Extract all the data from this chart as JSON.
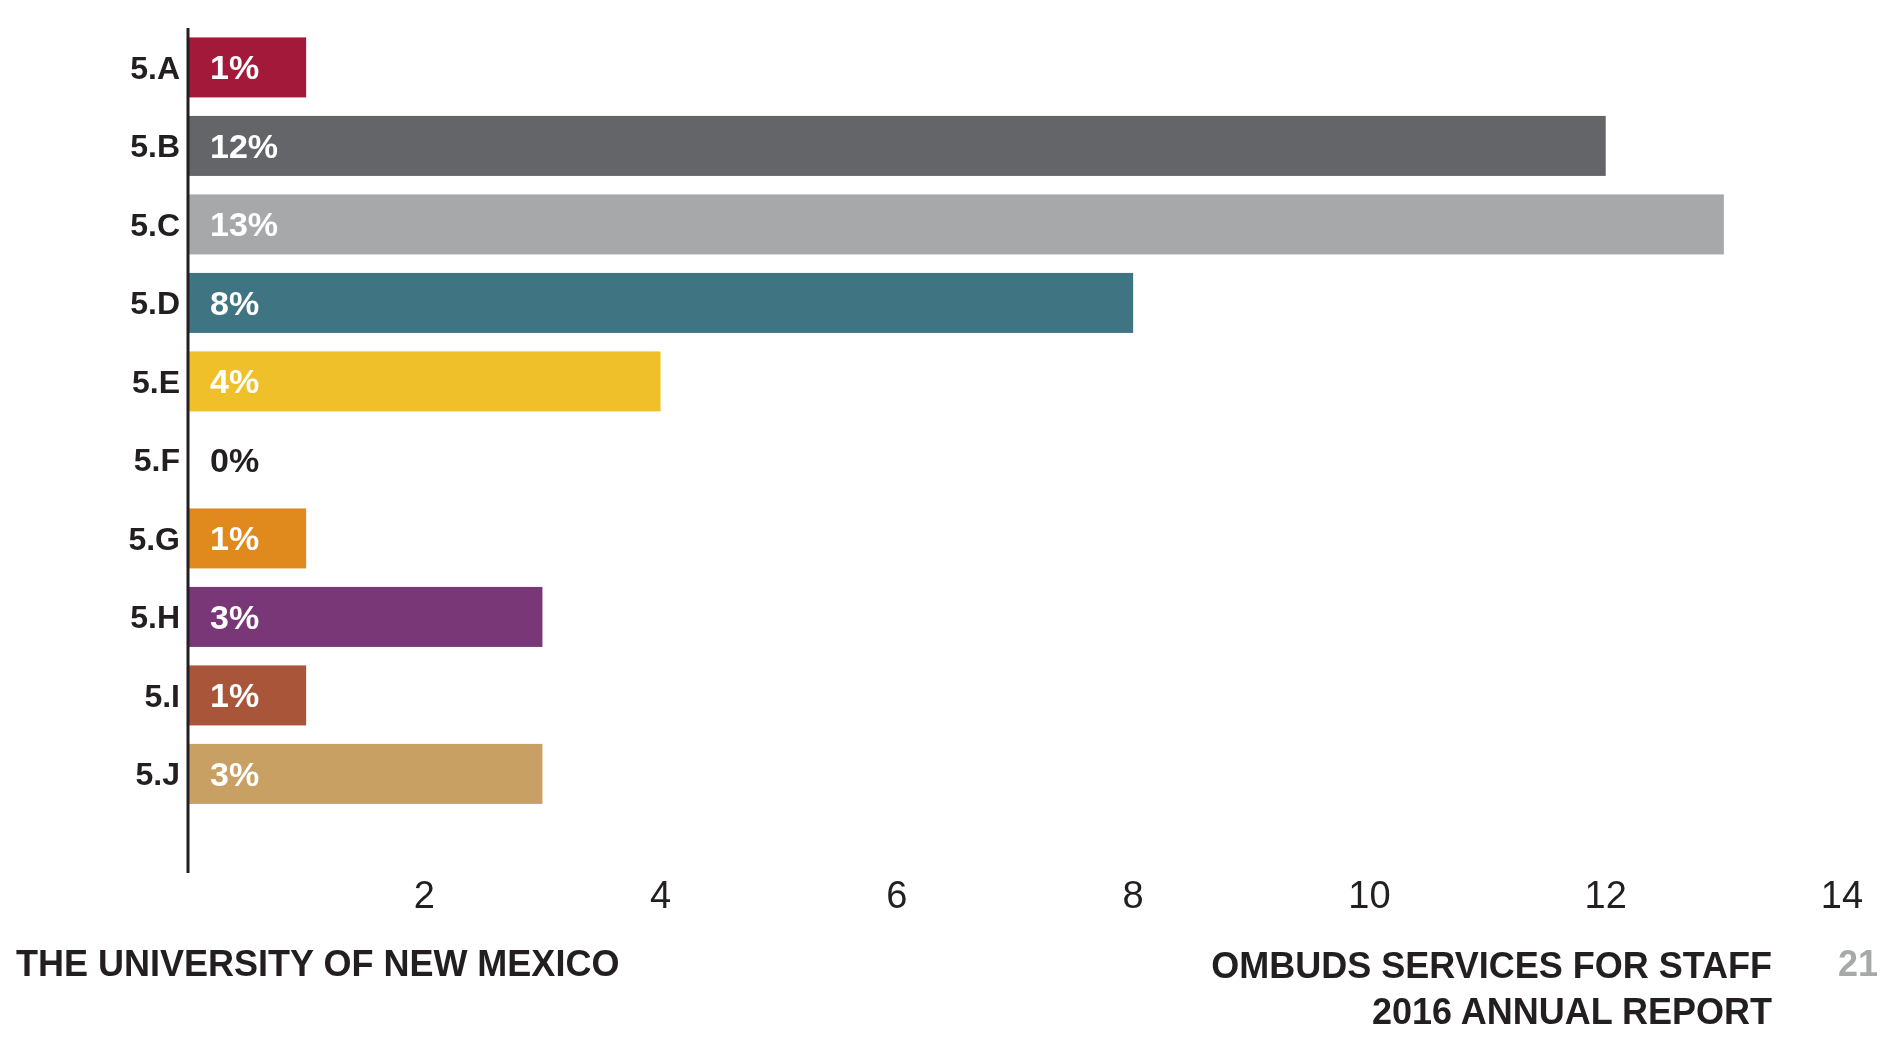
{
  "chart_data": {
    "type": "bar",
    "orientation": "horizontal",
    "categories": [
      "5.A",
      "5.B",
      "5.C",
      "5.D",
      "5.E",
      "5.F",
      "5.G",
      "5.H",
      "5.I",
      "5.J"
    ],
    "values": [
      1,
      12,
      13,
      8,
      4,
      0,
      1,
      3,
      1,
      3
    ],
    "colors": [
      "#a3193a",
      "#636569",
      "#a7a8aa",
      "#3f7482",
      "#f0c02a",
      null,
      "#e08a1e",
      "#7a3777",
      "#a8553a",
      "#c9a063"
    ],
    "value_labels": [
      "1%",
      "12%",
      "13%",
      "8%",
      "4%",
      "0%",
      "1%",
      "3%",
      "1%",
      "3%"
    ],
    "xlim": [
      0,
      14
    ],
    "xticks": [
      2,
      4,
      6,
      8,
      10,
      12,
      14
    ],
    "grid": false,
    "legend": false,
    "annotations": [
      "THE UNIVERSITY OF NEW MEXICO",
      "OMBUDS SERVICES FOR STAFF\n2016 ANNUAL REPORT",
      "21"
    ]
  }
}
